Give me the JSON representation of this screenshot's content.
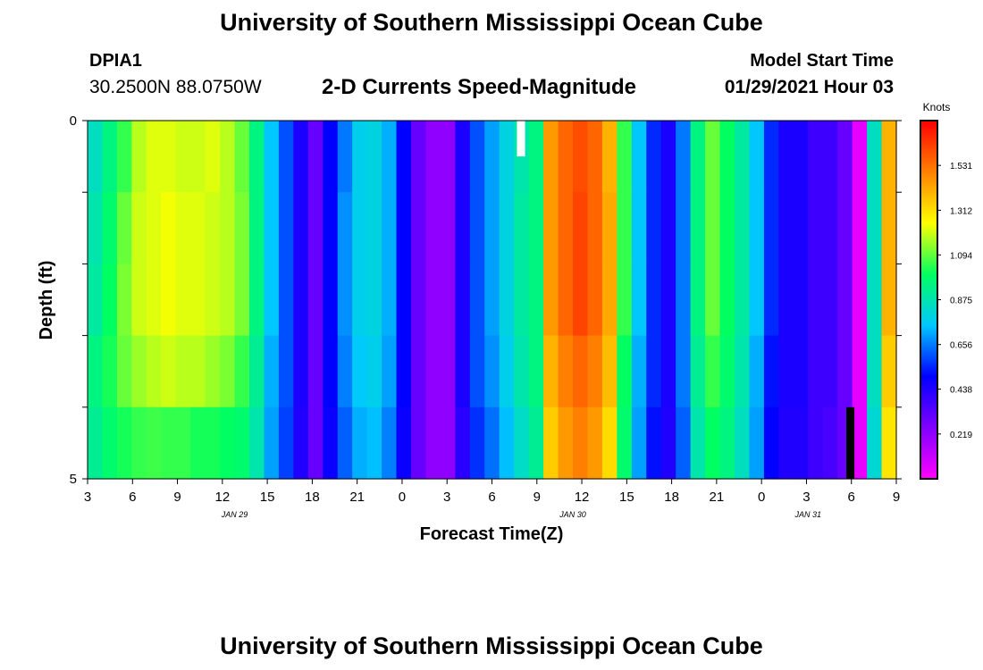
{
  "header": {
    "title": "University of Southern Mississippi Ocean Cube",
    "station_id": "DPIA1",
    "coords": "30.2500N 88.0750W",
    "chart_title": "2-D Currents Speed-Magnitude",
    "model_start_label": "Model Start Time",
    "model_start_value": "01/29/2021 Hour 03"
  },
  "footer": {
    "title": "University of Southern Mississippi Ocean Cube"
  },
  "chart_data": {
    "type": "heatmap",
    "title": "2-D Currents Speed-Magnitude",
    "xlabel": "Forecast Time(Z)",
    "ylabel": "Depth (ft)",
    "x_start": "01/29/2021 Hour 03",
    "x_step_hours": 1,
    "x_ticks": [
      "3",
      "6",
      "9",
      "12",
      "15",
      "18",
      "21",
      "0",
      "3",
      "6",
      "9",
      "12",
      "15",
      "18",
      "21",
      "0",
      "3",
      "6",
      "9"
    ],
    "date_labels": [
      {
        "label": "JAN  29",
        "hour_index": 10
      },
      {
        "label": "JAN  30",
        "hour_index": 33
      },
      {
        "label": "JAN  31",
        "hour_index": 49
      }
    ],
    "y_ticks": [
      "0",
      "5"
    ],
    "ylim": [
      0,
      5
    ],
    "depth_rows": 5,
    "colorbar": {
      "label": "Knots",
      "range": [
        0,
        1.75
      ],
      "ticks": [
        "1.531",
        "1.312",
        "1.094",
        "0.875",
        "0.656",
        "0.438",
        "0.219"
      ],
      "colors": [
        "#ff00ff",
        "#8000ff",
        "#0000ff",
        "#00c8ff",
        "#00ff60",
        "#ffff00",
        "#ff8000",
        "#ff0000"
      ]
    },
    "values": [
      [
        0.85,
        0.95,
        1.05,
        1.18,
        1.22,
        1.22,
        1.2,
        1.2,
        1.22,
        1.18,
        1.1,
        0.95,
        0.75,
        0.6,
        0.45,
        0.3,
        0.5,
        0.65,
        0.78,
        0.8,
        0.72,
        0.5,
        0.3,
        0.22,
        0.22,
        0.45,
        0.6,
        0.7,
        0.8,
        0.88,
        0.95,
        1.45,
        1.55,
        1.6,
        1.55,
        1.4,
        1.05,
        0.75,
        0.55,
        0.45,
        0.65,
        0.95,
        1.1,
        1.0,
        0.9,
        0.75,
        0.55,
        0.45,
        0.45,
        0.38,
        0.38,
        0.3,
        0.05,
        0.85,
        1.4
      ],
      [
        0.88,
        0.98,
        1.1,
        1.2,
        1.22,
        1.24,
        1.22,
        1.22,
        1.2,
        1.18,
        1.12,
        0.95,
        0.75,
        0.6,
        0.45,
        0.3,
        0.5,
        0.68,
        0.78,
        0.8,
        0.72,
        0.5,
        0.3,
        0.22,
        0.22,
        0.45,
        0.6,
        0.7,
        0.8,
        0.9,
        0.95,
        1.45,
        1.55,
        1.62,
        1.55,
        1.42,
        1.05,
        0.75,
        0.55,
        0.45,
        0.65,
        0.95,
        1.1,
        1.0,
        0.9,
        0.75,
        0.55,
        0.45,
        0.45,
        0.38,
        0.38,
        0.3,
        0.05,
        0.85,
        1.4
      ],
      [
        0.9,
        1.0,
        1.12,
        1.2,
        1.22,
        1.24,
        1.22,
        1.22,
        1.2,
        1.18,
        1.12,
        0.95,
        0.75,
        0.6,
        0.45,
        0.3,
        0.5,
        0.68,
        0.78,
        0.8,
        0.72,
        0.5,
        0.3,
        0.22,
        0.22,
        0.45,
        0.6,
        0.7,
        0.8,
        0.9,
        0.95,
        1.45,
        1.55,
        1.62,
        1.55,
        1.42,
        1.05,
        0.75,
        0.55,
        0.45,
        0.65,
        0.95,
        1.1,
        1.0,
        0.9,
        0.75,
        0.55,
        0.45,
        0.45,
        0.38,
        0.38,
        0.3,
        0.05,
        0.85,
        1.4
      ],
      [
        0.95,
        1.02,
        1.1,
        1.15,
        1.18,
        1.2,
        1.18,
        1.18,
        1.15,
        1.12,
        1.05,
        0.92,
        0.72,
        0.6,
        0.45,
        0.3,
        0.5,
        0.66,
        0.76,
        0.78,
        0.7,
        0.5,
        0.3,
        0.22,
        0.22,
        0.45,
        0.6,
        0.68,
        0.78,
        0.88,
        0.95,
        1.4,
        1.5,
        1.55,
        1.5,
        1.38,
        1.0,
        0.72,
        0.55,
        0.45,
        0.65,
        0.92,
        1.05,
        0.98,
        0.88,
        0.72,
        0.52,
        0.45,
        0.45,
        0.38,
        0.38,
        0.3,
        0.05,
        0.85,
        1.35
      ],
      [
        0.92,
        0.98,
        1.02,
        1.05,
        1.06,
        1.05,
        1.05,
        1.02,
        1.02,
        1.0,
        0.98,
        0.88,
        0.7,
        0.58,
        0.44,
        0.3,
        0.48,
        0.62,
        0.72,
        0.74,
        0.66,
        0.48,
        0.3,
        0.22,
        0.22,
        0.42,
        0.56,
        0.64,
        0.74,
        0.84,
        0.92,
        1.35,
        1.45,
        1.5,
        1.45,
        1.32,
        0.98,
        0.7,
        0.52,
        0.44,
        0.62,
        0.88,
        1.0,
        0.95,
        0.85,
        0.7,
        0.5,
        0.44,
        0.44,
        0.38,
        0.36,
        0.3,
        0.05,
        0.82,
        1.3
      ]
    ],
    "missing_markers": [
      {
        "hour_index": 29.2,
        "row": 0,
        "color": "#ffffff"
      },
      {
        "hour_index": 51.6,
        "row": 4,
        "color": "#000000"
      }
    ]
  }
}
